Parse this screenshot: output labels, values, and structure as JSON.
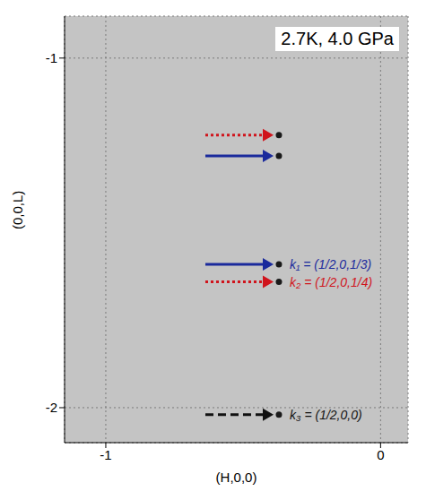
{
  "chart_data": {
    "type": "scatter",
    "title": "2.7K, 4.0 GPa",
    "x_label": "(H,0,0)",
    "y_label": "(0,0,L)",
    "xlim": [
      -1.15,
      0.1
    ],
    "xticks": [
      -1,
      0
    ],
    "ylim": [
      -2.1,
      -0.88
    ],
    "yticks": [
      -2,
      -1
    ],
    "grid": true,
    "series": [
      {
        "name": "k₁ = (1/2,0,1/3)",
        "color": "#1a2a9c",
        "line_style": "solid",
        "x": [
          -0.37,
          -0.37
        ],
        "values": [
          -1.28,
          -1.59
        ]
      },
      {
        "name": "k₂ = (1/2,0,1/4)",
        "color": "#d0141c",
        "line_style": "dotted",
        "x": [
          -0.37,
          -0.37
        ],
        "values": [
          -1.22,
          -1.64
        ]
      },
      {
        "name": "k₃ = (1/2,0,0)",
        "color": "#111111",
        "line_style": "dashed",
        "x": [
          -0.37
        ],
        "values": [
          -2.02
        ]
      }
    ]
  }
}
